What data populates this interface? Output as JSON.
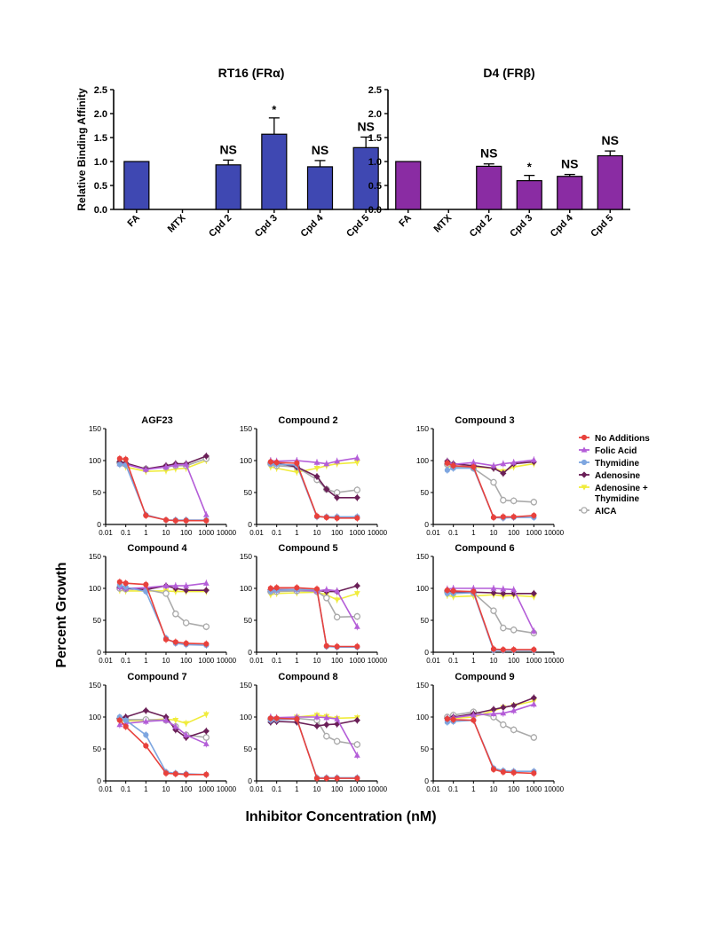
{
  "colors": {
    "axis": "#000000",
    "fra_bar": "#3f48b2",
    "frb_bar": "#8a2ca3",
    "no_additions": "#e8413c",
    "folic_acid": "#b45dd8",
    "thymidine": "#7ea6e0",
    "adenosine": "#6a1f57",
    "adenosine_thymidine": "#f0ec3c",
    "aica": "#aaaaaa"
  },
  "growth_axes": {
    "ylabel": "Percent Growth",
    "xlabel": "Inhibitor Concentration (nM)",
    "x_ticks": [
      "0.01",
      "0.1",
      "1",
      "10",
      "100",
      "1000",
      "10000"
    ],
    "y_ticks": [
      "0",
      "50",
      "100",
      "150"
    ]
  },
  "legend": [
    {
      "key": "no_additions",
      "lines": [
        "No  Additions"
      ],
      "marker": "circle-filled"
    },
    {
      "key": "folic_acid",
      "lines": [
        "Folic  Acid"
      ],
      "marker": "triangle"
    },
    {
      "key": "thymidine",
      "lines": [
        "Thymidine"
      ],
      "marker": "circle-filled"
    },
    {
      "key": "adenosine",
      "lines": [
        "Adenosine"
      ],
      "marker": "diamond"
    },
    {
      "key": "adenosine_thymidine",
      "lines": [
        "Adenosine +",
        "Thymidine"
      ],
      "marker": "triangle-down"
    },
    {
      "key": "aica",
      "lines": [
        "AICA"
      ],
      "marker": "circle-open"
    }
  ],
  "chart_data": [
    {
      "type": "bar",
      "title": "RT16 (FRα)",
      "ylabel": "Relative Binding Affinity",
      "categories": [
        "FA",
        "MTX",
        "Cpd 2",
        "Cpd 3",
        "Cpd 4",
        "Cpd 5"
      ],
      "values": [
        1.0,
        0.0,
        0.93,
        1.57,
        0.89,
        1.29
      ],
      "errors": [
        0,
        0,
        0.1,
        0.34,
        0.13,
        0.22
      ],
      "annotations": [
        "",
        "",
        "NS",
        "*",
        "NS",
        "NS"
      ],
      "ylim": [
        0,
        2.5
      ],
      "y_ticks": [
        "0.0",
        "0.5",
        "1.0",
        "1.5",
        "2.0",
        "2.5"
      ]
    },
    {
      "type": "bar",
      "title": "D4 (FRβ)",
      "ylabel": "",
      "categories": [
        "FA",
        "MTX",
        "Cpd 2",
        "Cpd 3",
        "Cpd 4",
        "Cpd 5"
      ],
      "values": [
        1.0,
        0.0,
        0.9,
        0.6,
        0.69,
        1.12
      ],
      "errors": [
        0,
        0,
        0.05,
        0.11,
        0.04,
        0.1
      ],
      "annotations": [
        "",
        "",
        "NS",
        "*",
        "NS",
        "NS"
      ],
      "ylim": [
        0,
        2.5
      ],
      "y_ticks": [
        "0.0",
        "0.5",
        "1.0",
        "1.5",
        "2.0",
        "2.5"
      ]
    },
    {
      "type": "line",
      "title": "AGF23",
      "xscale": "log",
      "x": [
        0.05,
        0.1,
        1,
        10,
        30,
        100,
        1000
      ],
      "series": [
        {
          "key": "no_additions",
          "name": "No  Additions",
          "values": [
            103,
            102,
            14,
            7,
            6,
            6,
            6
          ]
        },
        {
          "key": "folic_acid",
          "name": "Folic  Acid",
          "values": [
            95,
            94,
            86,
            90,
            93,
            94,
            15
          ]
        },
        {
          "key": "thymidine",
          "name": "Thymidine",
          "values": [
            94,
            93,
            15,
            7,
            7,
            7,
            7
          ]
        },
        {
          "key": "adenosine",
          "name": "Adenosine",
          "values": [
            98,
            96,
            87,
            92,
            95,
            95,
            107
          ]
        },
        {
          "key": "adenosine_thymidine",
          "name": "Adenosine + Thymidine",
          "values": [
            94,
            90,
            83,
            84,
            87,
            88,
            100
          ]
        },
        {
          "key": "aica",
          "name": "AICA",
          "values": [
            97,
            95,
            87,
            90,
            92,
            92,
            103
          ]
        }
      ]
    },
    {
      "type": "line",
      "title": "Compound 2",
      "xscale": "log",
      "x": [
        0.05,
        0.1,
        1,
        10,
        30,
        100,
        1000
      ],
      "series": [
        {
          "key": "no_additions",
          "name": "No  Additions",
          "values": [
            98,
            97,
            96,
            13,
            11,
            10,
            10
          ]
        },
        {
          "key": "folic_acid",
          "name": "Folic  Acid",
          "values": [
            100,
            99,
            100,
            97,
            95,
            99,
            104
          ]
        },
        {
          "key": "thymidine",
          "name": "Thymidine",
          "values": [
            95,
            94,
            93,
            12,
            12,
            12,
            12
          ]
        },
        {
          "key": "adenosine",
          "name": "Adenosine",
          "values": [
            97,
            96,
            90,
            75,
            55,
            42,
            42
          ]
        },
        {
          "key": "adenosine_thymidine",
          "name": "Adenosine + Thymidine",
          "values": [
            90,
            88,
            82,
            88,
            92,
            95,
            97
          ]
        },
        {
          "key": "aica",
          "name": "AICA",
          "values": [
            95,
            92,
            90,
            70,
            55,
            50,
            54
          ]
        }
      ]
    },
    {
      "type": "line",
      "title": "Compound 3",
      "xscale": "log",
      "x": [
        0.05,
        0.1,
        1,
        10,
        30,
        100,
        1000
      ],
      "series": [
        {
          "key": "no_additions",
          "name": "No  Additions",
          "values": [
            96,
            92,
            90,
            11,
            12,
            12,
            14
          ]
        },
        {
          "key": "folic_acid",
          "name": "Folic  Acid",
          "values": [
            98,
            94,
            97,
            92,
            95,
            97,
            101
          ]
        },
        {
          "key": "thymidine",
          "name": "Thymidine",
          "values": [
            85,
            88,
            88,
            11,
            10,
            11,
            11
          ]
        },
        {
          "key": "adenosine",
          "name": "Adenosine",
          "values": [
            99,
            95,
            92,
            88,
            80,
            95,
            98
          ]
        },
        {
          "key": "adenosine_thymidine",
          "name": "Adenosine + Thymidine",
          "values": [
            90,
            91,
            90,
            88,
            83,
            90,
            95
          ]
        },
        {
          "key": "aica",
          "name": "AICA",
          "values": [
            94,
            90,
            88,
            66,
            38,
            37,
            35
          ]
        }
      ]
    },
    {
      "type": "line",
      "title": "Compound 4",
      "xscale": "log",
      "x": [
        0.05,
        0.1,
        1,
        10,
        30,
        100,
        1000
      ],
      "series": [
        {
          "key": "no_additions",
          "name": "No  Additions",
          "values": [
            110,
            108,
            106,
            20,
            16,
            14,
            13
          ]
        },
        {
          "key": "folic_acid",
          "name": "Folic  Acid",
          "values": [
            102,
            100,
            101,
            104,
            104,
            104,
            108
          ]
        },
        {
          "key": "thymidine",
          "name": "Thymidine",
          "values": [
            105,
            102,
            95,
            22,
            14,
            12,
            11
          ]
        },
        {
          "key": "adenosine",
          "name": "Adenosine",
          "values": [
            102,
            100,
            98,
            104,
            100,
            97,
            97
          ]
        },
        {
          "key": "adenosine_thymidine",
          "name": "Adenosine + Thymidine",
          "values": [
            97,
            96,
            96,
            96,
            95,
            95,
            95
          ]
        },
        {
          "key": "aica",
          "name": "AICA",
          "values": [
            100,
            99,
            98,
            92,
            60,
            46,
            40
          ]
        }
      ]
    },
    {
      "type": "line",
      "title": "Compound 5",
      "xscale": "log",
      "x": [
        0.05,
        0.1,
        1,
        10,
        30,
        100,
        1000
      ],
      "series": [
        {
          "key": "no_additions",
          "name": "No  Additions",
          "values": [
            100,
            101,
            101,
            99,
            10,
            9,
            9
          ]
        },
        {
          "key": "folic_acid",
          "name": "Folic  Acid",
          "values": [
            98,
            97,
            98,
            96,
            98,
            96,
            40
          ]
        },
        {
          "key": "thymidine",
          "name": "Thymidine",
          "values": [
            96,
            97,
            98,
            98,
            9,
            8,
            8
          ]
        },
        {
          "key": "adenosine",
          "name": "Adenosine",
          "values": [
            98,
            98,
            98,
            97,
            95,
            95,
            104
          ]
        },
        {
          "key": "adenosine_thymidine",
          "name": "Adenosine + Thymidine",
          "values": [
            90,
            92,
            93,
            94,
            90,
            82,
            92
          ]
        },
        {
          "key": "aica",
          "name": "AICA",
          "values": [
            95,
            95,
            96,
            95,
            85,
            55,
            56
          ]
        }
      ]
    },
    {
      "type": "line",
      "title": "Compound 6",
      "xscale": "log",
      "x": [
        0.05,
        0.1,
        1,
        10,
        30,
        100,
        1000
      ],
      "series": [
        {
          "key": "no_additions",
          "name": "No  Additions",
          "values": [
            97,
            96,
            95,
            5,
            4,
            4,
            4
          ]
        },
        {
          "key": "folic_acid",
          "name": "Folic  Acid",
          "values": [
            99,
            100,
            100,
            100,
            99,
            98,
            33
          ]
        },
        {
          "key": "thymidine",
          "name": "Thymidine",
          "values": [
            92,
            92,
            93,
            3,
            3,
            3,
            3
          ]
        },
        {
          "key": "adenosine",
          "name": "Adenosine",
          "values": [
            97,
            95,
            94,
            93,
            92,
            92,
            92
          ]
        },
        {
          "key": "adenosine_thymidine",
          "name": "Adenosine + Thymidine",
          "values": [
            89,
            87,
            88,
            90,
            88,
            89,
            87
          ]
        },
        {
          "key": "aica",
          "name": "AICA",
          "values": [
            95,
            94,
            93,
            65,
            38,
            35,
            30
          ]
        }
      ]
    },
    {
      "type": "line",
      "title": "Compound 7",
      "xscale": "log",
      "x": [
        0.05,
        0.1,
        1,
        10,
        30,
        100,
        1000
      ],
      "series": [
        {
          "key": "no_additions",
          "name": "No  Additions",
          "values": [
            95,
            85,
            55,
            12,
            11,
            10,
            10
          ]
        },
        {
          "key": "folic_acid",
          "name": "Folic  Acid",
          "values": [
            88,
            90,
            93,
            95,
            85,
            72,
            58
          ]
        },
        {
          "key": "thymidine",
          "name": "Thymidine",
          "values": [
            100,
            95,
            72,
            14,
            12,
            11,
            10
          ]
        },
        {
          "key": "adenosine",
          "name": "Adenosine",
          "values": [
            98,
            100,
            110,
            100,
            80,
            68,
            78
          ]
        },
        {
          "key": "adenosine_thymidine",
          "name": "Adenosine + Thymidine",
          "values": [
            93,
            94,
            95,
            97,
            95,
            90,
            104
          ]
        },
        {
          "key": "aica",
          "name": "AICA",
          "values": [
            97,
            96,
            96,
            95,
            85,
            72,
            68
          ]
        }
      ]
    },
    {
      "type": "line",
      "title": "Compound 8",
      "xscale": "log",
      "x": [
        0.05,
        0.1,
        1,
        10,
        30,
        100,
        1000
      ],
      "series": [
        {
          "key": "no_additions",
          "name": "No  Additions",
          "values": [
            98,
            98,
            97,
            4,
            4,
            4,
            4
          ]
        },
        {
          "key": "folic_acid",
          "name": "Folic  Acid",
          "values": [
            100,
            99,
            100,
            100,
            99,
            97,
            40
          ]
        },
        {
          "key": "thymidine",
          "name": "Thymidine",
          "values": [
            95,
            96,
            97,
            5,
            5,
            5,
            5
          ]
        },
        {
          "key": "adenosine",
          "name": "Adenosine",
          "values": [
            92,
            93,
            92,
            86,
            88,
            89,
            95
          ]
        },
        {
          "key": "adenosine_thymidine",
          "name": "Adenosine + Thymidine",
          "values": [
            95,
            97,
            100,
            103,
            101,
            98,
            99
          ]
        },
        {
          "key": "aica",
          "name": "AICA",
          "values": [
            97,
            96,
            98,
            95,
            70,
            62,
            57
          ]
        }
      ]
    },
    {
      "type": "line",
      "title": "Compound 9",
      "xscale": "log",
      "x": [
        0.05,
        0.1,
        1,
        10,
        30,
        100,
        1000
      ],
      "series": [
        {
          "key": "no_additions",
          "name": "No  Additions",
          "values": [
            97,
            96,
            95,
            18,
            14,
            13,
            12
          ]
        },
        {
          "key": "folic_acid",
          "name": "Folic  Acid",
          "values": [
            98,
            99,
            103,
            105,
            106,
            110,
            120
          ]
        },
        {
          "key": "thymidine",
          "name": "Thymidine",
          "values": [
            92,
            93,
            95,
            20,
            16,
            15,
            15
          ]
        },
        {
          "key": "adenosine",
          "name": "Adenosine",
          "values": [
            98,
            100,
            105,
            112,
            115,
            118,
            130
          ]
        },
        {
          "key": "adenosine_thymidine",
          "name": "Adenosine + Thymidine",
          "values": [
            96,
            98,
            100,
            110,
            115,
            118,
            125
          ]
        },
        {
          "key": "aica",
          "name": "AICA",
          "values": [
            100,
            103,
            108,
            100,
            88,
            80,
            68
          ]
        }
      ]
    }
  ]
}
